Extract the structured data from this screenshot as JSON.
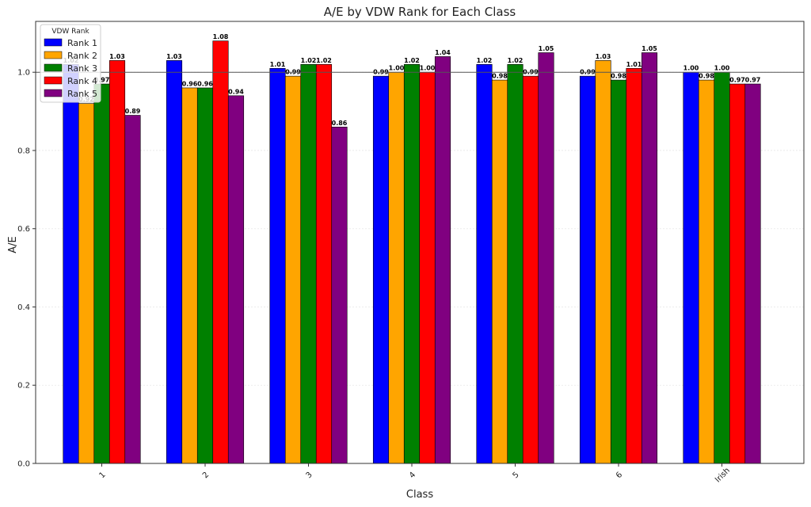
{
  "chart_data": {
    "type": "bar",
    "title": "A/E by VDW Rank for Each Class",
    "xlabel": "Class",
    "ylabel": "A/E",
    "categories": [
      "1",
      "2",
      "3",
      "4",
      "5",
      "6",
      "Irish"
    ],
    "ylim": [
      0,
      1.13
    ],
    "yticks": [
      "0.0",
      "0.2",
      "0.4",
      "0.6",
      "0.8",
      "1.0"
    ],
    "reference_line": 1.0,
    "grid": true,
    "legend": {
      "title": "VDW Rank",
      "placement": "top-left"
    },
    "series": [
      {
        "name": "Rank 1",
        "color": "#0000ff",
        "values": [
          1.02,
          1.03,
          1.01,
          0.99,
          1.02,
          0.99,
          1.0
        ],
        "labels": [
          "1.02",
          "1.03",
          "1.01",
          "0.99",
          "1.02",
          "0.99",
          "1.00"
        ]
      },
      {
        "name": "Rank 2",
        "color": "#ffa500",
        "values": [
          0.92,
          0.96,
          0.99,
          1.0,
          0.98,
          1.03,
          0.98
        ],
        "labels": [
          "0.92",
          "0.96",
          "0.99",
          "1.00",
          "0.98",
          "1.03",
          "0.98"
        ]
      },
      {
        "name": "Rank 3",
        "color": "#008000",
        "values": [
          0.97,
          0.96,
          1.02,
          1.02,
          1.02,
          0.98,
          1.0
        ],
        "labels": [
          "0.97",
          "0.96",
          "1.02",
          "1.02",
          "1.02",
          "0.98",
          "1.00"
        ]
      },
      {
        "name": "Rank 4",
        "color": "#ff0000",
        "values": [
          1.03,
          1.08,
          1.02,
          1.0,
          0.99,
          1.01,
          0.97
        ],
        "labels": [
          "1.03",
          "1.08",
          "1.02",
          "1.00",
          "0.99",
          "1.01",
          "0.97"
        ]
      },
      {
        "name": "Rank 5",
        "color": "#800080",
        "values": [
          0.89,
          0.94,
          0.86,
          1.04,
          1.05,
          1.05,
          0.97
        ],
        "labels": [
          "0.89",
          "0.94",
          "0.86",
          "1.04",
          "1.05",
          "1.05",
          "0.97"
        ]
      }
    ]
  }
}
